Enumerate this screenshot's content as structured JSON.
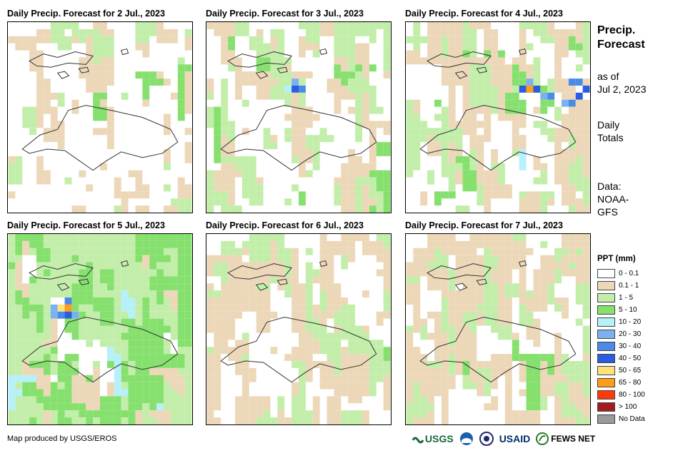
{
  "panels": [
    {
      "title": "Daily Precip. Forecast for 2 Jul., 2023",
      "day": 2
    },
    {
      "title": "Daily Precip. Forecast for 3 Jul., 2023",
      "day": 3
    },
    {
      "title": "Daily Precip. Forecast for 4 Jul., 2023",
      "day": 4
    },
    {
      "title": "Daily Precip. Forecast for 5 Jul., 2023",
      "day": 5
    },
    {
      "title": "Daily Precip. Forecast for 6 Jul., 2023",
      "day": 6
    },
    {
      "title": "Daily Precip. Forecast for 7 Jul., 2023",
      "day": 7
    }
  ],
  "side": {
    "title_line1": "Precip.",
    "title_line2": "Forecast",
    "asof_line1": "as of",
    "asof_line2": "Jul 2, 2023",
    "totals_line1": "Daily",
    "totals_line2": "Totals",
    "data_line1": "Data:",
    "data_line2": "NOAA-",
    "data_line3": "GFS"
  },
  "legend": {
    "title": "PPT (mm)",
    "items": [
      {
        "label": "0 - 0.1",
        "color": "#ffffff"
      },
      {
        "label": "0.1 - 1",
        "color": "#ecd8b8"
      },
      {
        "label": "1 - 5",
        "color": "#c2eeaa"
      },
      {
        "label": "5 - 10",
        "color": "#86e06e"
      },
      {
        "label": "10 - 20",
        "color": "#b6f0f8"
      },
      {
        "label": "20 - 30",
        "color": "#7ab2f0"
      },
      {
        "label": "30 - 40",
        "color": "#4a8ae8"
      },
      {
        "label": "40 - 50",
        "color": "#2a5ee0"
      },
      {
        "label": "50 - 65",
        "color": "#ffe27a"
      },
      {
        "label": "65 - 80",
        "color": "#ff9c1a"
      },
      {
        "label": "80 - 100",
        "color": "#ff3a0a"
      },
      {
        "label": "> 100",
        "color": "#a21e1e"
      },
      {
        "label": "No Data",
        "color": "#9a9a9a"
      }
    ]
  },
  "credit": "Map produced by USGS/EROS",
  "logos": {
    "usgs": "USGS",
    "usaid": "USAID",
    "fewsnet": "FEWS NET"
  }
}
